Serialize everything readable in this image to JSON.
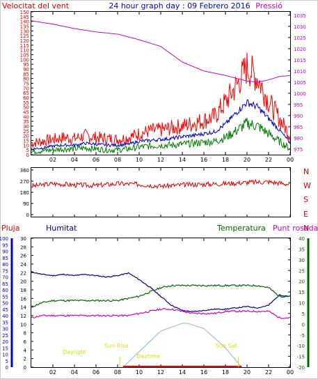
{
  "title": "24 hour graph day : 09 Febrero 2016",
  "labels": {
    "wind_speed": "Velocitat del vent",
    "pressure": "Pressió",
    "rain": "Pluja",
    "humidity": "Humitat",
    "temperature": "Temperatura",
    "dew_point": "Punt rosada",
    "daylight": "Daylight",
    "sun_rise": "Sun Rise",
    "daytime": "Daytime",
    "sun_set": "Sun Set"
  },
  "colors": {
    "wind_gust": "#ff0000",
    "wind_avg": "#0000cc",
    "wind_green": "#008000",
    "pressure": "#cc00cc",
    "direction": "#dd0000",
    "humidity": "#000099",
    "temperature": "#006600",
    "dew_point": "#cc00cc",
    "daylight_arc": "#a8ccee",
    "axis_left_bottom": "#0000aa",
    "axis_left_top": "#cc0000",
    "axis_right_green": "#006600"
  },
  "chart_data": [
    {
      "type": "line",
      "name": "wind_pressure",
      "x_ticks": [
        "02",
        "04",
        "06",
        "08",
        "10",
        "12",
        "14",
        "16",
        "18",
        "20",
        "22",
        "00"
      ],
      "y_left_ticks": [
        "0",
        "5",
        "10",
        "15",
        "20",
        "25",
        "30",
        "35",
        "40",
        "45",
        "50",
        "55",
        "60",
        "65",
        "70",
        "75",
        "80",
        "85",
        "90",
        "95",
        "100",
        "105",
        "110",
        "115",
        "120",
        "125",
        "130",
        "135",
        "140",
        "145",
        "150"
      ],
      "y_left_range": [
        0,
        150
      ],
      "y_right_ticks": [
        "975",
        "980",
        "985",
        "990",
        "995",
        "1000",
        "1005",
        "1010",
        "1015",
        "1020",
        "1025",
        "1030",
        "1035"
      ],
      "y_right_range": [
        972.5,
        1036.5
      ],
      "series": [
        {
          "key": "gust",
          "x": [
            0,
            1,
            2,
            3,
            4,
            5,
            6,
            7,
            8,
            9,
            10,
            11,
            12,
            13,
            14,
            15,
            16,
            17,
            18,
            19,
            20,
            21,
            22,
            23,
            24
          ],
          "values": [
            12,
            14,
            16,
            18,
            17,
            20,
            18,
            17,
            16,
            18,
            22,
            25,
            26,
            28,
            30,
            33,
            36,
            40,
            55,
            72,
            92,
            80,
            56,
            38,
            20
          ]
        },
        {
          "key": "avg",
          "x": [
            0,
            1,
            2,
            3,
            4,
            5,
            6,
            7,
            8,
            9,
            10,
            11,
            12,
            13,
            14,
            15,
            16,
            17,
            18,
            19,
            20,
            21,
            22,
            23,
            24
          ],
          "values": [
            6,
            7,
            9,
            10,
            10,
            12,
            11,
            10,
            10,
            11,
            14,
            15,
            16,
            17,
            19,
            20,
            22,
            24,
            32,
            44,
            55,
            50,
            38,
            26,
            12
          ]
        },
        {
          "key": "low",
          "x": [
            0,
            1,
            2,
            3,
            4,
            5,
            6,
            7,
            8,
            9,
            10,
            11,
            12,
            13,
            14,
            15,
            16,
            17,
            18,
            19,
            20,
            21,
            22,
            23,
            24
          ],
          "values": [
            3,
            4,
            5,
            6,
            6,
            7,
            6,
            5,
            5,
            6,
            8,
            9,
            10,
            10,
            11,
            12,
            13,
            14,
            18,
            25,
            33,
            30,
            22,
            14,
            6
          ]
        },
        {
          "key": "pressure",
          "x": [
            0,
            2,
            4,
            6,
            8,
            10,
            12,
            14,
            16,
            18,
            20,
            21,
            22,
            23,
            24
          ],
          "values": [
            1032.5,
            1031,
            1029,
            1027.5,
            1026.5,
            1024,
            1021,
            1014,
            1010,
            1008,
            1005.5,
            1005,
            1006,
            1007.5,
            1008
          ]
        }
      ]
    },
    {
      "type": "line",
      "name": "wind_direction",
      "y_left_ticks": [
        "360",
        "270",
        "180",
        "90",
        "0"
      ],
      "y_left_range": [
        0,
        360
      ],
      "y_right_ticks": [
        "N",
        "W",
        "S",
        "E",
        "N"
      ],
      "series": [
        {
          "key": "direction",
          "x": [
            0,
            2,
            4,
            6,
            8,
            10,
            12,
            14,
            16,
            18,
            20,
            22,
            24
          ],
          "values": [
            230,
            250,
            240,
            235,
            250,
            245,
            230,
            240,
            245,
            250,
            260,
            265,
            245
          ]
        }
      ]
    },
    {
      "type": "line",
      "name": "temp_hum",
      "y_hum_ticks": [
        "0",
        "5",
        "10",
        "15",
        "20",
        "25",
        "30",
        "35",
        "40",
        "45",
        "50",
        "55",
        "60",
        "65",
        "70",
        "75",
        "80",
        "85",
        "90",
        "95",
        "100"
      ],
      "y_rain_ticks": [
        "0",
        "2",
        "4",
        "6",
        "8",
        "10",
        "12",
        "14",
        "16",
        "18",
        "20",
        "22",
        "24",
        "26",
        "28",
        "30"
      ],
      "y_right_ticks": [
        "-20",
        "-15",
        "-10",
        "-5",
        "0",
        "5",
        "10",
        "15",
        "20",
        "25",
        "30",
        "35",
        "40"
      ],
      "y_right_range": [
        -20,
        40
      ],
      "series": [
        {
          "key": "humidity",
          "x": [
            0,
            1,
            2,
            3,
            4,
            5,
            6,
            7,
            8,
            9,
            10,
            11,
            12,
            13,
            14,
            15,
            16,
            17,
            18,
            19,
            20,
            21,
            22,
            23,
            24
          ],
          "values": [
            74,
            72,
            71,
            72,
            71,
            72,
            71,
            70,
            71,
            73,
            68,
            62,
            55,
            48,
            44,
            43,
            44,
            45,
            45,
            46,
            47,
            46,
            48,
            56,
            55
          ]
        },
        {
          "key": "temperature",
          "x": [
            0,
            1,
            2,
            3,
            4,
            5,
            6,
            7,
            8,
            9,
            10,
            11,
            12,
            13,
            14,
            15,
            16,
            17,
            18,
            19,
            20,
            21,
            22,
            23,
            24
          ],
          "values": [
            8,
            10,
            11,
            11,
            11,
            11,
            11,
            11,
            11,
            12,
            13,
            15,
            17,
            18,
            18,
            18,
            18,
            18,
            18,
            18,
            18,
            18,
            17,
            13,
            13
          ]
        },
        {
          "key": "dew_point",
          "x": [
            0,
            1,
            2,
            3,
            4,
            5,
            6,
            7,
            8,
            9,
            10,
            11,
            12,
            13,
            14,
            15,
            16,
            17,
            18,
            19,
            20,
            21,
            22,
            23,
            24
          ],
          "values": [
            3,
            4,
            4,
            4,
            4,
            4,
            4,
            4,
            4,
            4,
            5,
            6,
            7,
            7,
            6,
            5,
            5,
            5,
            6,
            6,
            6,
            6,
            6,
            3,
            3
          ]
        },
        {
          "key": "daylight",
          "x": [
            8.5,
            10,
            12,
            14,
            14.5,
            16,
            18,
            19.5
          ],
          "values": [
            0,
            12,
            28,
            34,
            34,
            30,
            15,
            0
          ]
        }
      ]
    }
  ]
}
